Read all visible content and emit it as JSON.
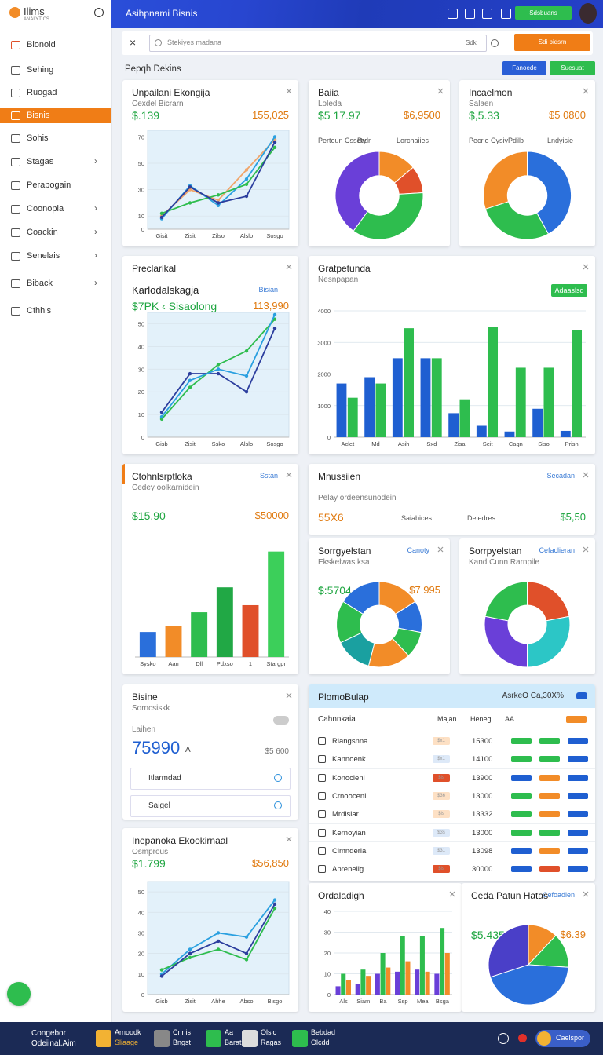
{
  "header": {
    "logo": "Ilims",
    "logo_sub": "ANALYTICS",
    "title": "Asihpnami Bisnis",
    "button": "Sdsbuans"
  },
  "sidebar": {
    "items": [
      "Bionoid",
      "Sehing",
      "Ruogad",
      "Bisnis",
      "Sohis",
      "Stagas",
      "Perabogain",
      "Coonopia",
      "Coackin",
      "Senelais",
      "Biback",
      "Cthhis"
    ]
  },
  "toolbar": {
    "search": "Stekiyes madana",
    "filter": "Sdk",
    "button": "Sdi bidsrn"
  },
  "section": {
    "title": "Pepqh Dekins",
    "buttons": [
      "Fanoede",
      "Suesuat"
    ]
  },
  "panels": [
    {
      "title": "Unpailani Ekongija",
      "subtitle": "Cexdel Bicrarn",
      "stats": [
        "$.139",
        "155,025"
      ],
      "chart": {
        "type": "line",
        "categories": [
          "Gisit",
          "Zisit",
          "Zilso",
          "Alslo",
          "Sosgo"
        ],
        "series": [
          {
            "color": "#f0a56a",
            "values": [
              10,
              30,
              22,
              45,
              68
            ]
          },
          {
            "color": "#2aa0e0",
            "values": [
              8,
              33,
              18,
              38,
              70
            ]
          },
          {
            "color": "#2ebd4e",
            "values": [
              12,
              20,
              26,
              34,
              62
            ]
          },
          {
            "color": "#2c3e9e",
            "values": [
              9,
              32,
              20,
              25,
              66
            ]
          }
        ],
        "ylim": [
          0,
          75
        ],
        "yticks": [
          0,
          10,
          30,
          50,
          70
        ],
        "grid": true
      }
    },
    {
      "title": "Baiia",
      "subtitle": "Loleda",
      "stats": [
        "$5 17.97",
        "$6,9500"
      ],
      "notes": [
        "Pertoun Cssety",
        "Brdr",
        "Lorchaiies"
      ],
      "chart": {
        "type": "pie",
        "donut": true,
        "values": [
          14,
          10,
          36,
          40
        ],
        "colors": [
          "#f28c28",
          "#e0502a",
          "#2ebd4e",
          "#6a3fd8"
        ]
      }
    },
    {
      "title": "Incaelmon",
      "subtitle": "Salaen",
      "stats": [
        "$,5.33",
        "$5 0800"
      ],
      "notes": [
        "Pecrio Cysiy",
        "Pdilb",
        "Lndyisie"
      ],
      "chart": {
        "type": "pie",
        "donut": true,
        "values": [
          42,
          28,
          30
        ],
        "colors": [
          "#2a6fdb",
          "#2ebd4e",
          "#f28c28"
        ]
      }
    },
    {
      "title": "Preclarikal",
      "subtitle": "Karlodalskagja",
      "badge": "Bisian",
      "stats": [
        "$7PK ‹ Sisaolong",
        "113,990"
      ],
      "chart": {
        "type": "line",
        "categories": [
          "Gisb",
          "Zisit",
          "Ssko",
          "Alslo",
          "Sosgo"
        ],
        "series": [
          {
            "color": "#2ebd4e",
            "values": [
              8,
              22,
              32,
              38,
              52
            ]
          },
          {
            "color": "#2c3e9e",
            "values": [
              11,
              28,
              28,
              20,
              48
            ]
          },
          {
            "color": "#2aa0e0",
            "values": [
              9,
              25,
              30,
              27,
              54
            ]
          }
        ],
        "ylim": [
          0,
          55
        ],
        "yticks": [
          0,
          10,
          20,
          30,
          40,
          50
        ],
        "grid": true
      }
    },
    {
      "title": "Gratpetunda",
      "subtitle": "Nesnpapan",
      "button": "Adaaslsd",
      "chart": {
        "type": "bar",
        "categories": [
          "Aclet",
          "Md",
          "Asih",
          "Sxd",
          "Zisa",
          "Seit",
          "Cagn",
          "Siso",
          "Prisn"
        ],
        "series": [
          {
            "color": "#1f5fd1",
            "values": [
              1700,
              1900,
              2500,
              2500,
              760,
              360,
              180,
              900,
              200
            ]
          },
          {
            "color": "#2ebd4e",
            "values": [
              1250,
              1700,
              3450,
              2500,
              1200,
              3500,
              2200,
              2200,
              3400
            ]
          }
        ],
        "ylim": [
          0,
          4000
        ],
        "yticks": [
          0,
          1000,
          2000,
          3000,
          4000
        ],
        "grid": true
      }
    },
    {
      "title": "Ctohnlsrptloka",
      "subtitle": "Cedey oolkarnidein",
      "badge": "Sstan",
      "stats": [
        "$15.90",
        "$50000"
      ],
      "chart": {
        "type": "bar",
        "categories": [
          "Sysko",
          "Aan",
          "Dll",
          "Pdxso",
          "1",
          "Stargpr"
        ],
        "values": [
          28,
          35,
          50,
          78,
          58,
          118
        ],
        "colors": [
          "#2a6fdb",
          "#f28c28",
          "#2ebd4e",
          "#21a845",
          "#e0502a",
          "#3ccf5a"
        ],
        "ylim": [
          0,
          130
        ]
      }
    },
    {
      "title": "Mnussiien",
      "subtitle": "Pelay ordeensunodein",
      "badge": "Secadan",
      "stats": [
        "55X6",
        "$5,50"
      ],
      "notes": [
        "Saiabices",
        "Deledres"
      ]
    },
    {
      "title": "Sorrgyelstan",
      "badge": "Canoty",
      "subtitle": "Ekskelwas ksa",
      "stats": [
        "$:5704",
        "$7 995"
      ],
      "chart": {
        "type": "pie",
        "donut": true,
        "values": [
          16,
          12,
          10,
          16,
          14,
          16,
          16
        ],
        "colors": [
          "#f28c28",
          "#2a6fdb",
          "#2ebd4e",
          "#f28c28",
          "#1aa0a0",
          "#2ebd4e",
          "#2a6fdb"
        ]
      }
    },
    {
      "title": "Sorrpyelstan",
      "badge": "Cefaclieran",
      "subtitle": "Kand Cunn Rarnpile",
      "chart": {
        "type": "pie",
        "donut": true,
        "values": [
          22,
          28,
          28,
          22
        ],
        "colors": [
          "#e0502a",
          "#2cc6c6",
          "#6a3fd8",
          "#2ebd4e"
        ]
      }
    },
    {
      "title": "Bisine",
      "subtitle": "Sorncsiskk",
      "caption": "Laihen",
      "big": "75990",
      "big_unit": "A",
      "big_right": "$5 600",
      "inputs": [
        "Itlarmdad",
        "Saigel"
      ]
    },
    {
      "title": "Inepanoka Ekookirnaal",
      "subtitle": "Osmprous",
      "stats": [
        "$1.799",
        "$56,850"
      ],
      "chart": {
        "type": "line",
        "categories": [
          "Gisb",
          "Zisit",
          "Ahhe",
          "Abso",
          "Bisgo"
        ],
        "series": [
          {
            "color": "#2aa0e0",
            "values": [
              10,
              22,
              30,
              28,
              46
            ]
          },
          {
            "color": "#2ebd4e",
            "values": [
              12,
              18,
              22,
              17,
              42
            ]
          },
          {
            "color": "#2c3e9e",
            "values": [
              9,
              20,
              26,
              20,
              44
            ]
          }
        ],
        "ylim": [
          0,
          55
        ],
        "yticks": [
          0,
          10,
          20,
          30,
          40,
          50
        ],
        "grid": true
      }
    },
    {
      "title": "Ordaladigh",
      "chart": {
        "type": "bar",
        "categories": [
          "Als",
          "Siam",
          "Ba",
          "Ssp",
          "Mea",
          "Bsga"
        ],
        "series": [
          {
            "color": "#6a3fd8",
            "values": [
              4,
              5,
              10,
              11,
              12,
              10
            ]
          },
          {
            "color": "#2ebd4e",
            "values": [
              10,
              12,
              20,
              28,
              28,
              32
            ]
          },
          {
            "color": "#f28c28",
            "values": [
              7,
              9,
              13,
              16,
              11,
              20
            ]
          }
        ],
        "ylim": [
          0,
          40
        ],
        "yticks": [
          0,
          10,
          20,
          30,
          40
        ],
        "grid": true
      }
    },
    {
      "title": "Ceda Patun Hatas",
      "badge": "Cefoadlen",
      "stats": [
        "$5.435",
        "$6.39"
      ],
      "chart": {
        "type": "pie",
        "values": [
          12,
          14,
          44,
          30
        ],
        "colors": [
          "#f28c28",
          "#2ebd4e",
          "#2a6fdb",
          "#4a3fc8"
        ]
      }
    }
  ],
  "table": {
    "title": "PlomoBulap",
    "badge": "AsrkeO Ca,30X%",
    "columns": [
      "Cahnnkaia",
      "Majan",
      "Heneg",
      "AA"
    ],
    "rows": [
      [
        "Riangsnna",
        "$x1",
        "15300"
      ],
      [
        "Kannoenk",
        "$x1",
        "14100"
      ],
      [
        "Konocienl",
        "$ls",
        "13900"
      ],
      [
        "Crnoocenl",
        "$36",
        "13000"
      ],
      [
        "Mrdisiar",
        "$is",
        "13332"
      ],
      [
        "Kernoyian",
        "$3s",
        "13000"
      ],
      [
        "Clmnderia",
        "$31",
        "13098"
      ],
      [
        "Aprenelig",
        "$is",
        "30000"
      ]
    ]
  },
  "footer": {
    "title": "Congebor",
    "title2": "Odeiinal.Aim",
    "items": [
      [
        "Arnoodk",
        "Sliaage"
      ],
      [
        "Crinis",
        "Bngst"
      ],
      [
        "Aa",
        "Barat"
      ],
      [
        "Olsic",
        "Ragas"
      ],
      [
        "Bebdad",
        "Olcdd"
      ]
    ],
    "user": "Caelspor"
  }
}
